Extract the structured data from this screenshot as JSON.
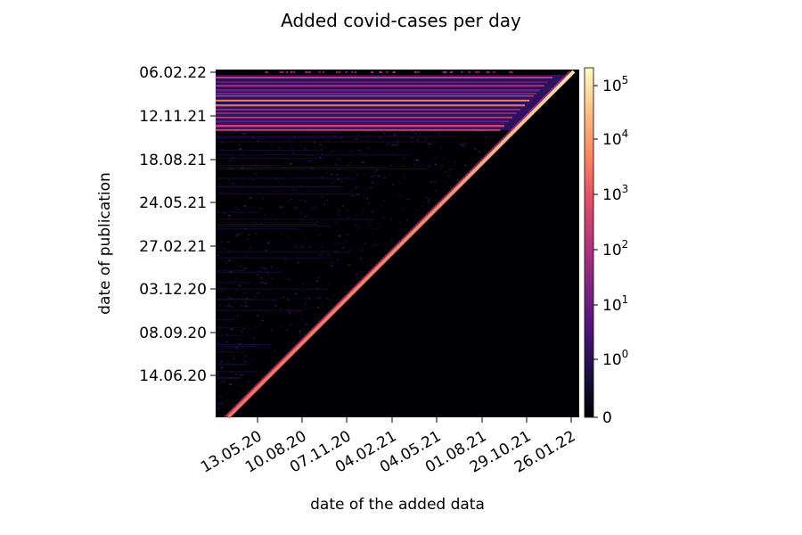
{
  "chart_data": {
    "type": "heatmap",
    "title": "Added covid-cases per day",
    "xlabel": "date of the added data",
    "ylabel": "date of publication",
    "x_range": [
      "2020-03-01",
      "2022-02-10"
    ],
    "y_range": [
      "2020-03-01",
      "2022-02-10"
    ],
    "x_ticks": [
      "13.05.20",
      "10.08.20",
      "07.11.20",
      "04.02.21",
      "04.05.21",
      "01.08.21",
      "29.10.21",
      "26.01.22"
    ],
    "y_ticks": [
      "06.02.22",
      "12.11.21",
      "18.08.21",
      "24.05.21",
      "27.02.21",
      "03.12.20",
      "08.09.20",
      "14.06.20"
    ],
    "colorbar": {
      "scale": "symlog",
      "range": [
        0,
        150000
      ],
      "colormap": "magma",
      "tick_labels": [
        {
          "base": "0",
          "exp": ""
        },
        {
          "base": "10",
          "exp": "0"
        },
        {
          "base": "10",
          "exp": "1"
        },
        {
          "base": "10",
          "exp": "2"
        },
        {
          "base": "10",
          "exp": "3"
        },
        {
          "base": "10",
          "exp": "4"
        },
        {
          "base": "10",
          "exp": "5"
        }
      ]
    },
    "structure": {
      "diagonal": "publication date = data date, value about 10^4",
      "lower_triangle": "no data (0)",
      "upper_triangle_background": "sparse low counts 10^0 to 10^1",
      "banded_region": "publication dates from about Oct 2021 to Feb 2022 show horizontal bands of 10^2 to 10^4 across all data dates"
    }
  }
}
